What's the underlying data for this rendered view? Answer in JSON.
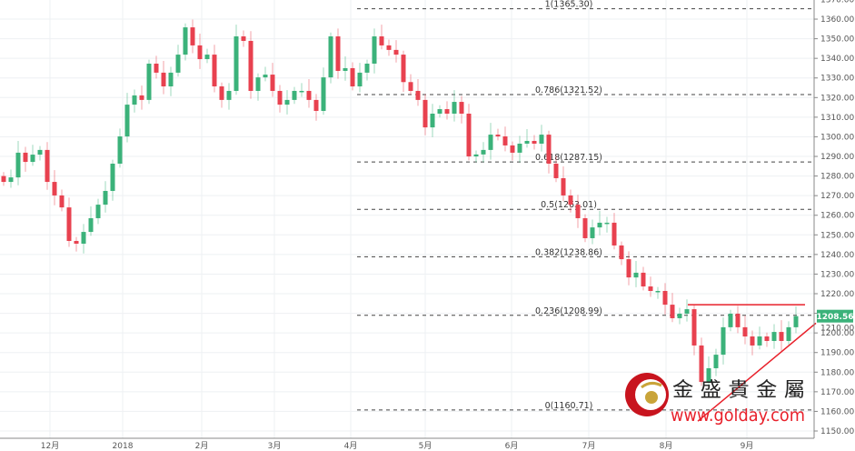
{
  "chart_data": {
    "type": "candlestick",
    "title": "",
    "xlabel": "",
    "ylabel": "",
    "ylim": [
      1150,
      1370
    ],
    "y_ticks": [
      "1150.00",
      "1160.00",
      "1170.00",
      "1180.00",
      "1190.00",
      "1200.00",
      "1210.00",
      "1220.00",
      "1230.00",
      "1240.00",
      "1250.00",
      "1260.00",
      "1270.00",
      "1280.00",
      "1290.00",
      "1300.00",
      "1310.00",
      "1320.00",
      "1330.00",
      "1340.00",
      "1350.00",
      "1360.00",
      "1370.00"
    ],
    "x_ticks": [
      "12月",
      "2018",
      "2月",
      "3月",
      "4月",
      "5月",
      "6月",
      "7月",
      "8月",
      "9月"
    ],
    "grid": true,
    "colors": {
      "up": "#3bb27a",
      "down": "#e8414f",
      "grid": "#eef0f3",
      "fib": "#444444",
      "trend": "#e8202a",
      "last_price_bg": "#3bb27a"
    },
    "open_first": 1280,
    "closes": [
      1277,
      1279.3,
      1291.9,
      1287.2,
      1290.9,
      1293.3,
      1277,
      1270.1,
      1264,
      1246.9,
      1245.5,
      1251.5,
      1258.5,
      1265.4,
      1272.4,
      1286.3,
      1300.2,
      1316.4,
      1321.1,
      1318.8,
      1337.3,
      1332.7,
      1325.7,
      1332.7,
      1341.9,
      1355.8,
      1346.6,
      1339.6,
      1341.9,
      1325.7,
      1318.8,
      1323.4,
      1351.2,
      1348.9,
      1323.4,
      1330.3,
      1331.7,
      1323.4,
      1316.4,
      1318.8,
      1323.4,
      1323.4,
      1318.8,
      1313.2,
      1330.3,
      1351.2,
      1333.6,
      1335,
      1325.7,
      1332.7,
      1337.3,
      1351.2,
      1346.6,
      1344.3,
      1341.9,
      1327.9,
      1323.4,
      1318.8,
      1304.8,
      1311.8,
      1314.1,
      1311.8,
      1317.8,
      1311.8,
      1290,
      1291,
      1293.3,
      1301.1,
      1300.2,
      1295.6,
      1291.9,
      1296.5,
      1297.9,
      1296.5,
      1301.1,
      1286.3,
      1278.9,
      1270.1,
      1265.4,
      1258.5,
      1248.3,
      1253.8,
      1256.2,
      1256.2,
      1244.6,
      1237.6,
      1228.3,
      1230.7,
      1223.7,
      1221.4,
      1221.4,
      1214.4,
      1207.5,
      1209.8,
      1212.1,
      1193.6,
      1175,
      1182,
      1188.9,
      1202.9,
      1209.8,
      1202.9,
      1198.2,
      1193.6,
      1198.2,
      1195.9,
      1200.5,
      1195.9,
      1202.9,
      1208.56
    ],
    "last_price": "1208.56",
    "fib_levels": [
      {
        "label": "1(1365.30)",
        "value": 1365.3
      },
      {
        "label": "0.786(1321.52)",
        "value": 1321.52
      },
      {
        "label": "0.618(1287.15)",
        "value": 1287.15
      },
      {
        "label": "0.5(1263.01)",
        "value": 1263.01
      },
      {
        "label": "0.382(1238.86)",
        "value": 1238.86
      },
      {
        "label": "0.236(1208.99)",
        "value": 1208.99
      },
      {
        "label": "0(1160.71)",
        "value": 1160.71
      }
    ],
    "resistance_value": 1214.4,
    "trendline": {
      "from_value": 1155,
      "to_value": 1205
    }
  },
  "watermark": {
    "name_cn": "金 盛 貴 金 屬",
    "url": "www.golday.com"
  }
}
